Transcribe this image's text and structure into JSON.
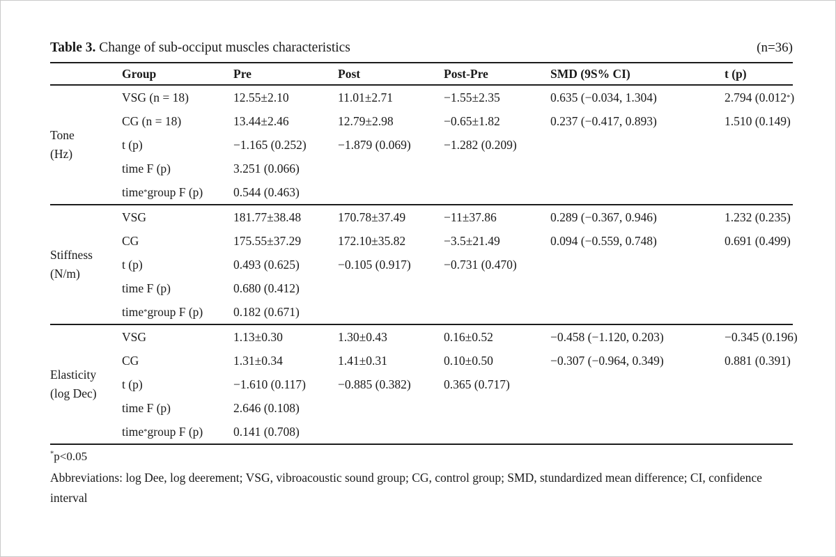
{
  "page": {
    "title_label": "Table 3.",
    "title_text": " Change of sub-occiput muscles characteristics",
    "sample_note": "(n=36)"
  },
  "table": {
    "columns": [
      "",
      "Group",
      "Pre",
      "Post",
      "Post-Pre",
      "SMD (9S% CI)",
      "t (p)"
    ],
    "groups": [
      {
        "label": [
          "Tone",
          "(Hz)"
        ],
        "rows": [
          [
            "VSG (n = 18)",
            "12.55±2.10",
            "11.01±2.71",
            "−1.55±2.35",
            "0.635 (−0.034, 1.304)",
            "2.794 (0.012*)"
          ],
          [
            "CG (n = 18)",
            "13.44±2.46",
            "12.79±2.98",
            "−0.65±1.82",
            "0.237 (−0.417, 0.893)",
            "1.510 (0.149)"
          ],
          [
            "t (p)",
            "−1.165 (0.252)",
            "−1.879 (0.069)",
            "−1.282 (0.209)",
            "",
            ""
          ],
          [
            "time F (p)",
            "3.251 (0.066)",
            "",
            "",
            "",
            ""
          ],
          [
            "time*group F (p)",
            "0.544 (0.463)",
            "",
            "",
            "",
            ""
          ]
        ]
      },
      {
        "label": [
          "Stiffness",
          "(N/m)"
        ],
        "rows": [
          [
            "VSG",
            "181.77±38.48",
            "170.78±37.49",
            "−11±37.86",
            "0.289 (−0.367, 0.946)",
            "1.232 (0.235)"
          ],
          [
            "CG",
            "175.55±37.29",
            "172.10±35.82",
            "−3.5±21.49",
            "0.094 (−0.559, 0.748)",
            "0.691 (0.499)"
          ],
          [
            "t (p)",
            "0.493 (0.625)",
            "−0.105 (0.917)",
            "−0.731 (0.470)",
            "",
            ""
          ],
          [
            "time F (p)",
            "0.680 (0.412)",
            "",
            "",
            "",
            ""
          ],
          [
            "time*group F (p)",
            "0.182 (0.671)",
            "",
            "",
            "",
            ""
          ]
        ]
      },
      {
        "label": [
          "Elasticity",
          "(log Dec)"
        ],
        "rows": [
          [
            "VSG",
            "1.13±0.30",
            "1.30±0.43",
            "0.16±0.52",
            "−0.458 (−1.120, 0.203)",
            "−0.345 (0.196)"
          ],
          [
            "CG",
            "1.31±0.34",
            "1.41±0.31",
            "0.10±0.50",
            "−0.307 (−0.964, 0.349)",
            "0.881 (0.391)"
          ],
          [
            "t (p)",
            "−1.610 (0.117)",
            "−0.885 (0.382)",
            "0.365 (0.717)",
            "",
            ""
          ],
          [
            "time F (p)",
            "2.646 (0.108)",
            "",
            "",
            "",
            ""
          ],
          [
            "time*group F (p)",
            "0.141 (0.708)",
            "",
            "",
            "",
            ""
          ]
        ]
      }
    ]
  },
  "footnotes": {
    "significance": "*p<0.05",
    "abbreviations": "Abbreviations: log Dee, log deerement; VSG, vibroacoustic sound group; CG, control group; SMD, stundardized mean difference; CI, confidence interval"
  }
}
